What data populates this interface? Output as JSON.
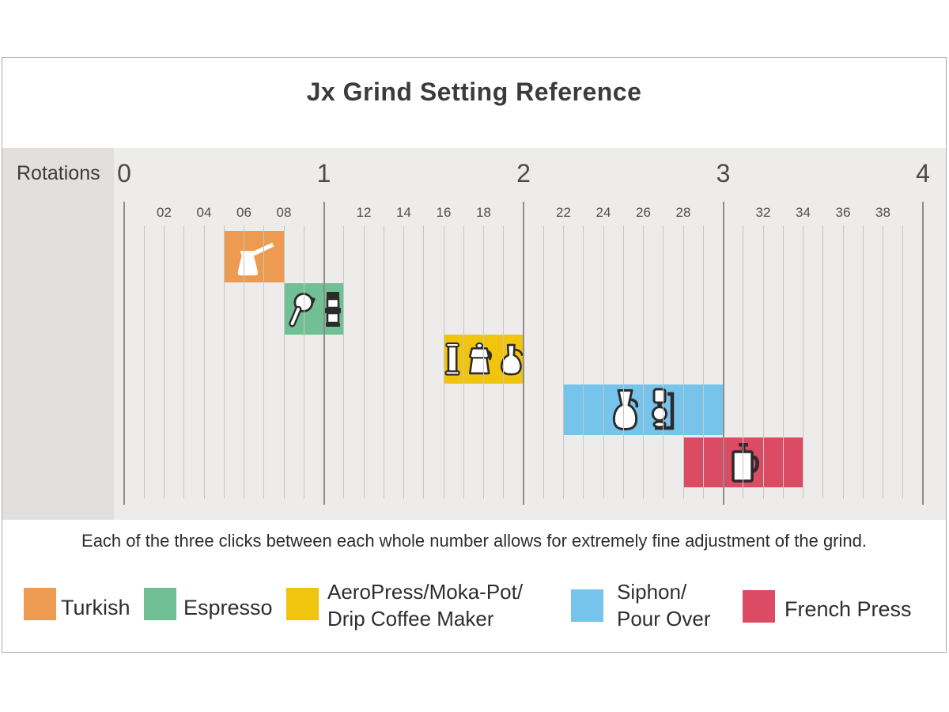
{
  "title": "Jx Grind Setting Reference",
  "axis": {
    "label": "Rotations",
    "major_ticks": [
      {
        "label": "0",
        "value": 0
      },
      {
        "label": "1",
        "value": 1
      },
      {
        "label": "2",
        "value": 2
      },
      {
        "label": "3",
        "value": 3
      },
      {
        "label": "4",
        "value": 4
      }
    ],
    "minor_tick_labels": [
      {
        "label": "02",
        "value": 0.2
      },
      {
        "label": "04",
        "value": 0.4
      },
      {
        "label": "06",
        "value": 0.6
      },
      {
        "label": "08",
        "value": 0.8
      },
      {
        "label": "12",
        "value": 1.2
      },
      {
        "label": "14",
        "value": 1.4
      },
      {
        "label": "16",
        "value": 1.6
      },
      {
        "label": "18",
        "value": 1.8
      },
      {
        "label": "22",
        "value": 2.2
      },
      {
        "label": "24",
        "value": 2.4
      },
      {
        "label": "26",
        "value": 2.6
      },
      {
        "label": "28",
        "value": 2.8
      },
      {
        "label": "32",
        "value": 3.2
      },
      {
        "label": "34",
        "value": 3.4
      },
      {
        "label": "36",
        "value": 3.6
      },
      {
        "label": "38",
        "value": 3.8
      }
    ]
  },
  "caption": "Each of the three clicks between each whole number allows for extremely fine adjustment of the grind.",
  "legend": {
    "items": [
      {
        "label": "Turkish",
        "color": "#ec9b51"
      },
      {
        "label": "Espresso",
        "color": "#71bf94"
      },
      {
        "label": "AeroPress/Moka-Pot/\nDrip Coffee Maker",
        "color": "#f1c40e"
      },
      {
        "label": "Siphon/\nPour Over",
        "color": "#76c3ec"
      },
      {
        "label": "French Press",
        "color": "#db4b63"
      }
    ]
  },
  "chart_data": {
    "type": "bar",
    "subtype": "horizontal-range-bands",
    "title": "Jx Grind Setting Reference",
    "xlabel": "Rotations",
    "xlim": [
      0,
      4
    ],
    "minor_unit": 0.1,
    "grid": "vertical",
    "series": [
      {
        "name": "Turkish",
        "range": [
          0.5,
          0.8
        ],
        "color": "#ec9b51"
      },
      {
        "name": "Espresso",
        "range": [
          0.8,
          1.1
        ],
        "color": "#71bf94"
      },
      {
        "name": "AeroPress/Moka-Pot/Drip Coffee Maker",
        "range": [
          1.6,
          2.0
        ],
        "color": "#f1c40e"
      },
      {
        "name": "Siphon/Pour Over",
        "range": [
          2.2,
          3.0
        ],
        "color": "#76c3ec"
      },
      {
        "name": "French Press",
        "range": [
          2.8,
          3.4
        ],
        "color": "#db4b63"
      }
    ]
  }
}
